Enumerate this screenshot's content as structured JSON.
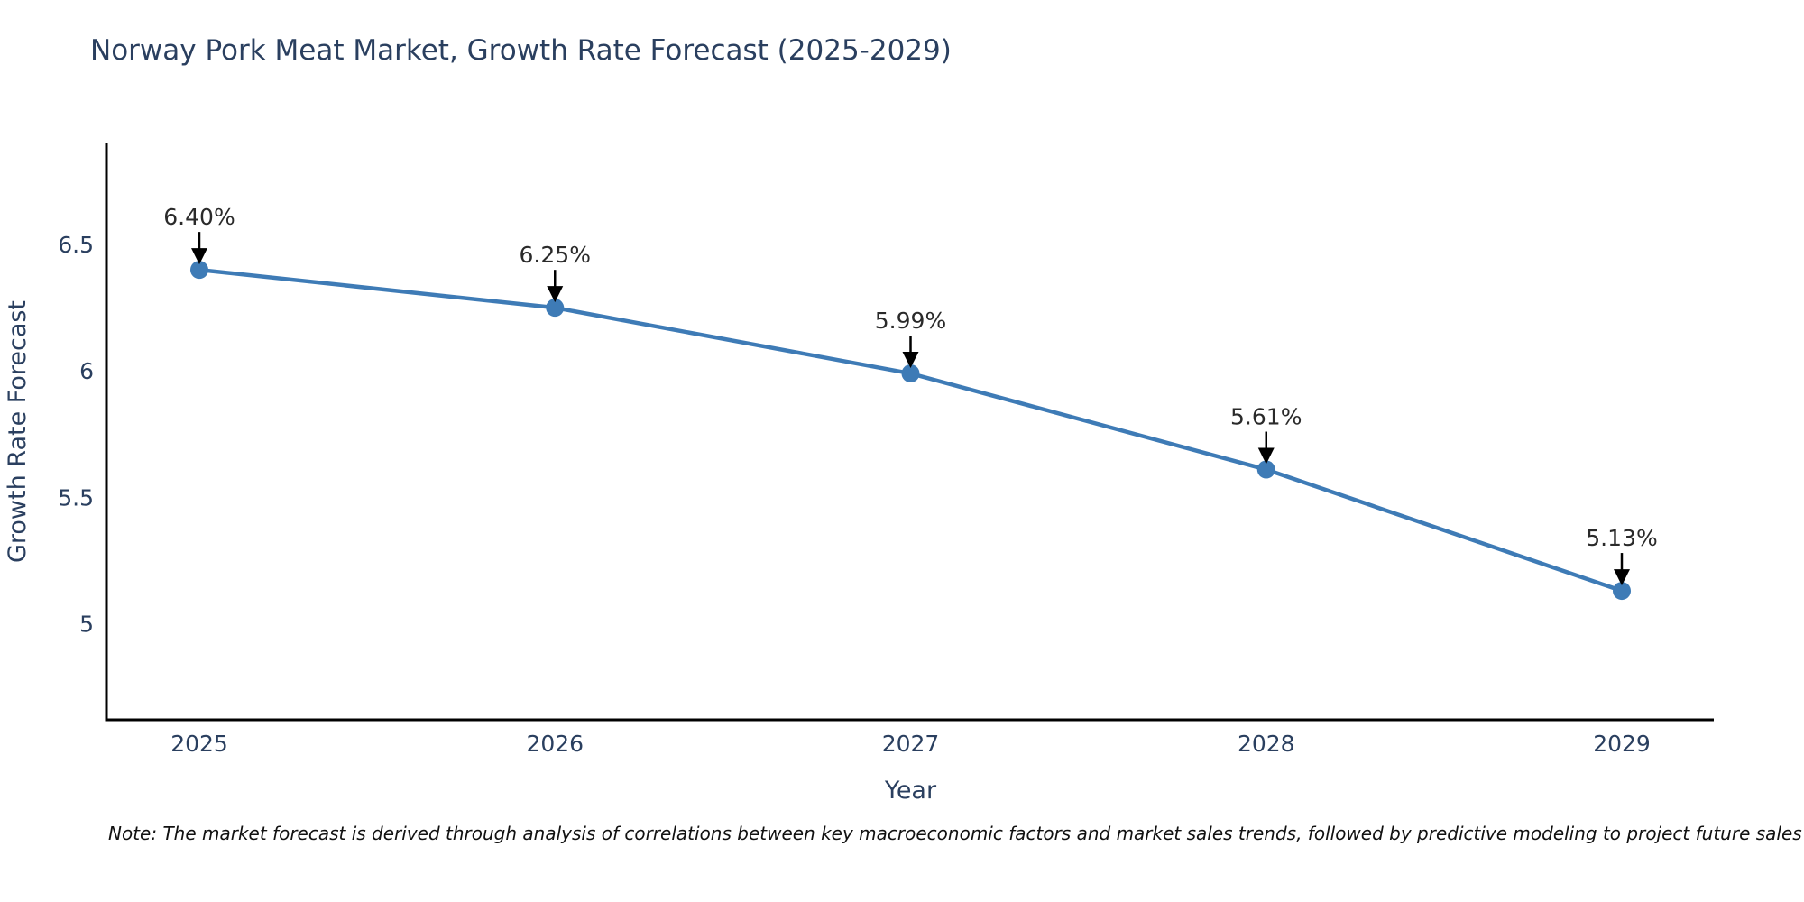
{
  "title": "Norway Pork Meat Market, Growth Rate Forecast (2025-2029)",
  "note": "Note: The market forecast is derived through analysis of correlations between key macroeconomic factors and market sales trends, followed by predictive modeling to project future sales",
  "chart_data": {
    "type": "line",
    "title": "Norway Pork Meat Market, Growth Rate Forecast (2025-2029)",
    "xlabel": "Year",
    "ylabel": "Growth Rate Forecast",
    "categories": [
      "2025",
      "2026",
      "2027",
      "2028",
      "2029"
    ],
    "series": [
      {
        "name": "Growth Rate Forecast",
        "values": [
          6.4,
          6.25,
          5.99,
          5.61,
          5.13
        ]
      }
    ],
    "point_labels": [
      "6.40%",
      "6.25%",
      "5.99%",
      "5.61%",
      "5.13%"
    ],
    "yticks": [
      5,
      5.5,
      6,
      6.5
    ],
    "ytick_labels": [
      "5",
      "5.5",
      "6",
      "6.5"
    ],
    "ylim": [
      4.62,
      6.9
    ],
    "grid": false,
    "legend_position": "none",
    "colors": {
      "line": "#3e7bb6",
      "marker": "#3e7bb6",
      "axis": "#000000",
      "tick_label": "#2a3f5f",
      "axis_title": "#2a3f5f",
      "annotation_text": "#2a2a2a",
      "annotation_arrow": "#000000",
      "background": "#ffffff"
    }
  }
}
